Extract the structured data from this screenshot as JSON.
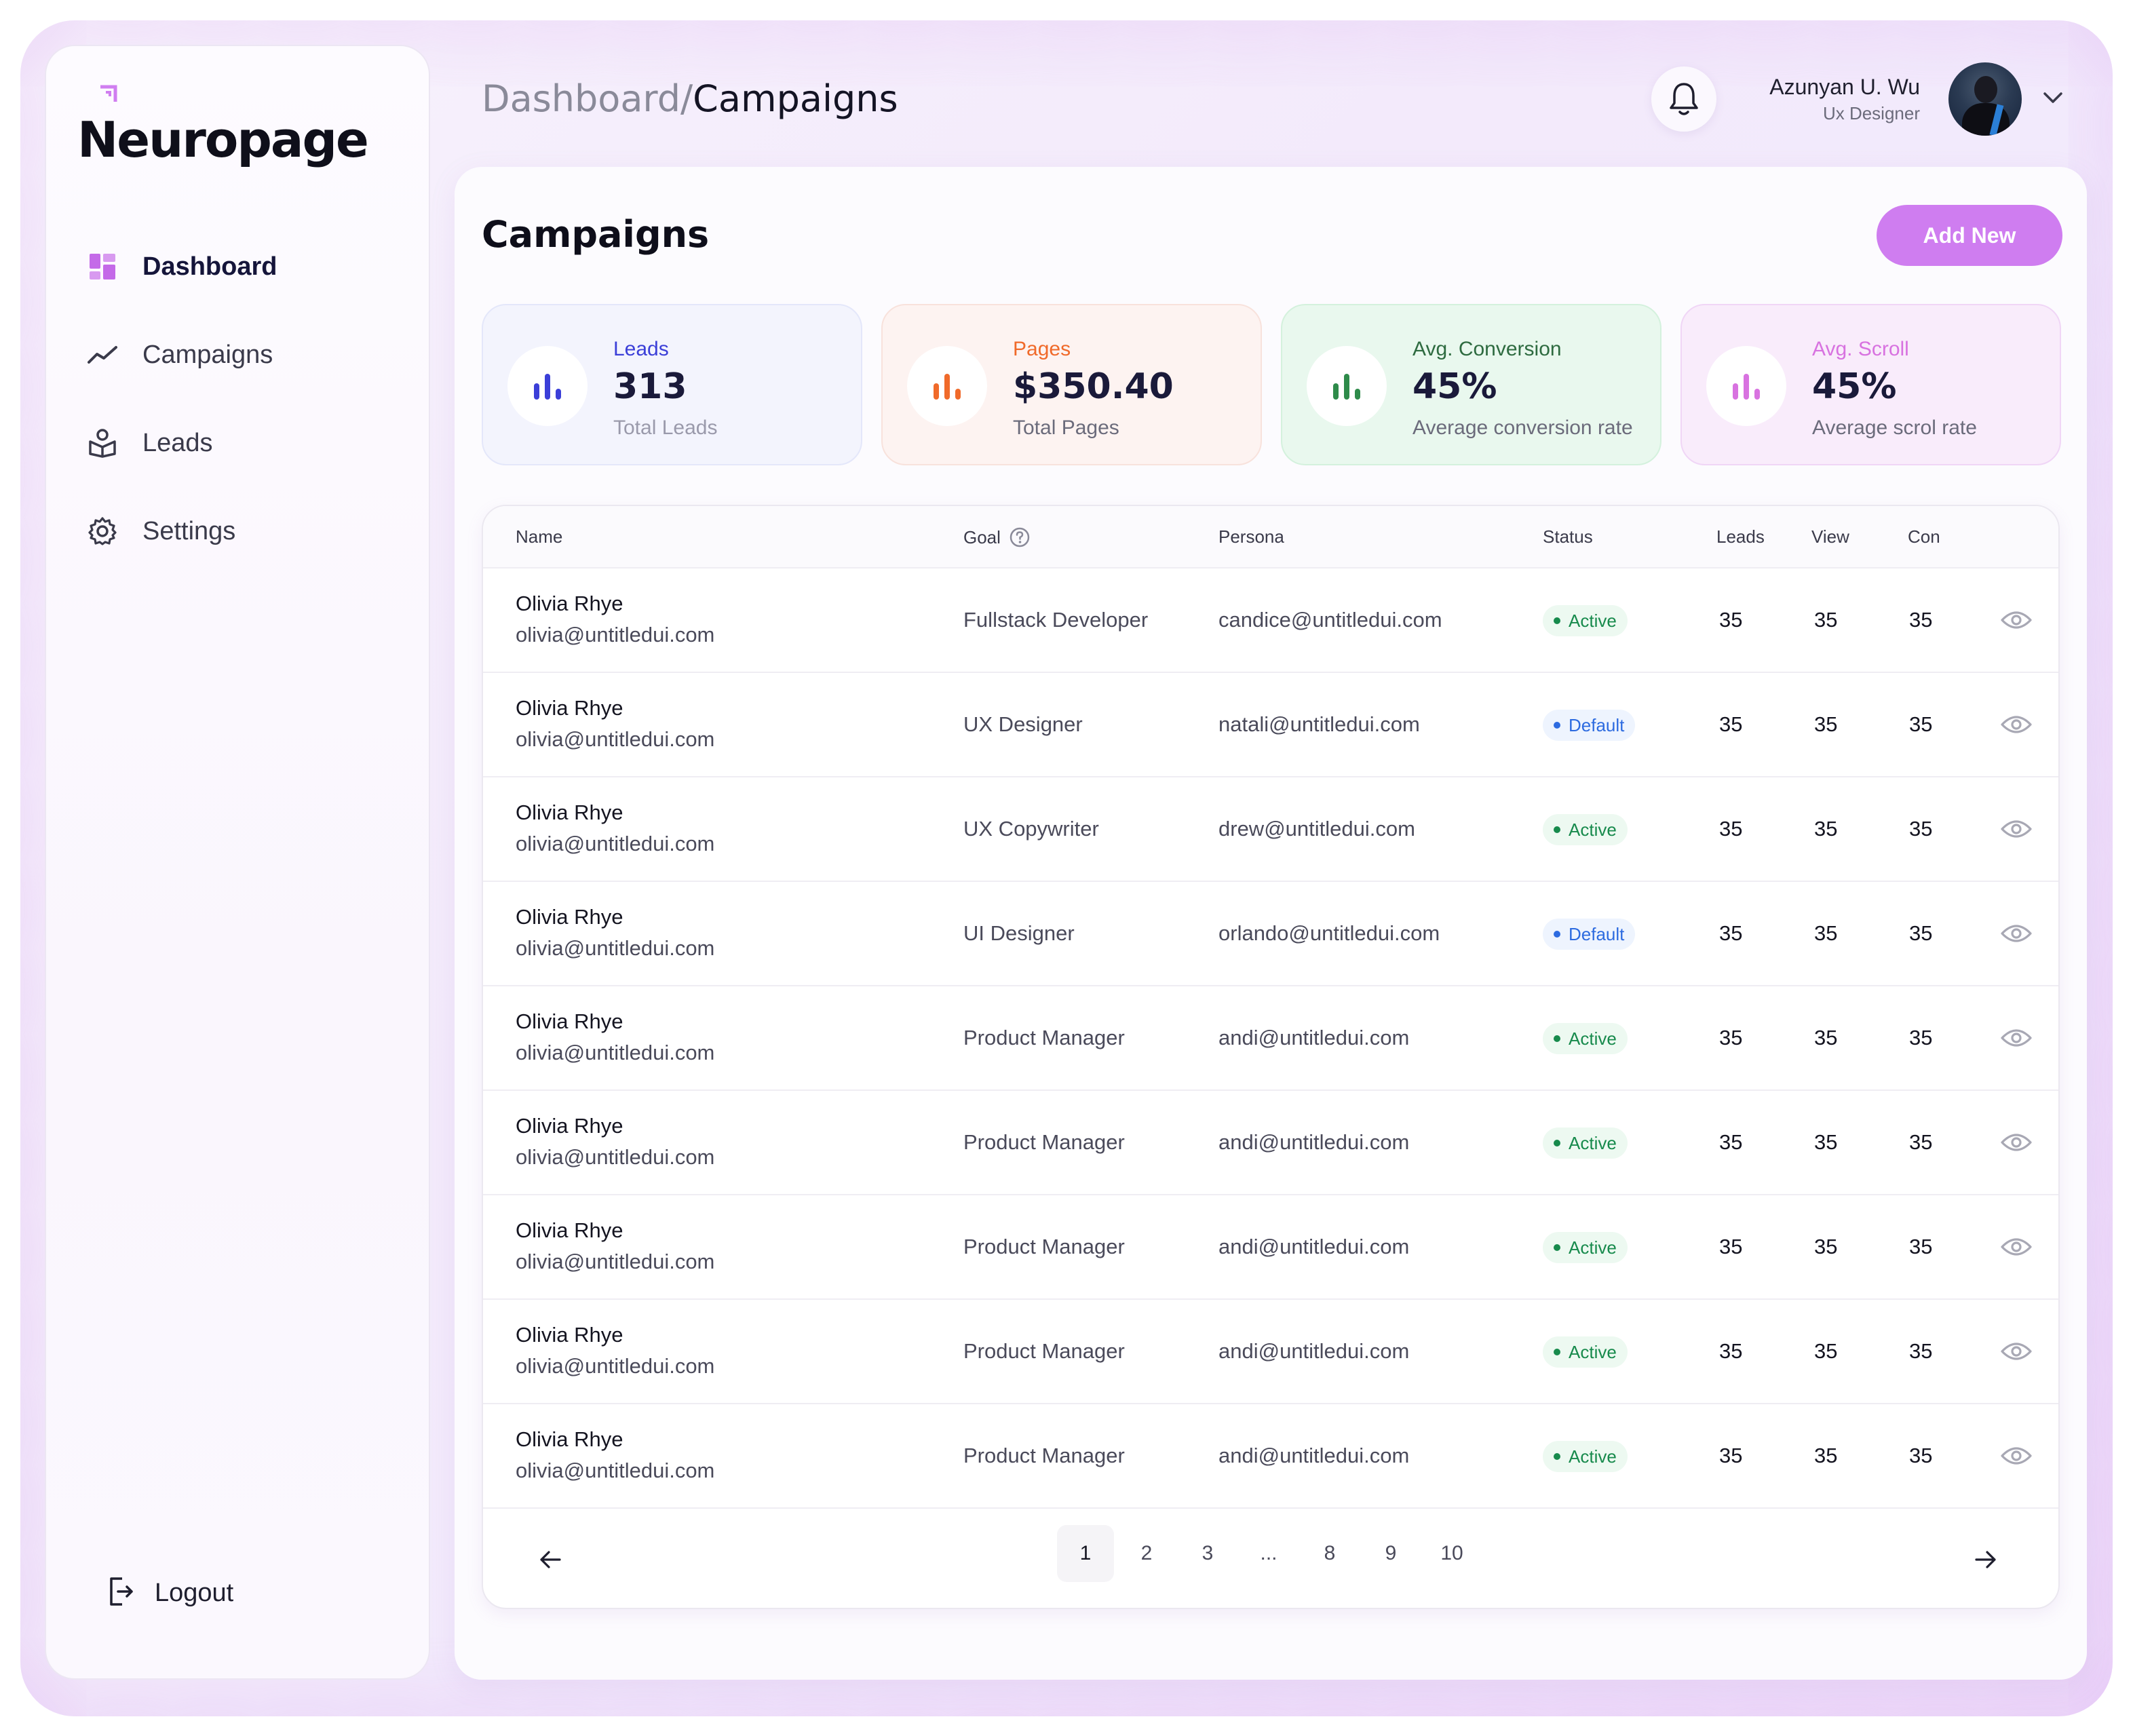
{
  "app": {
    "name": "Neuropage"
  },
  "sidebar": {
    "items": [
      {
        "label": "Dashboard",
        "icon": "dashboard-icon",
        "active": true
      },
      {
        "label": "Campaigns",
        "icon": "trend-line-icon",
        "active": false
      },
      {
        "label": "Leads",
        "icon": "leads-icon",
        "active": false
      },
      {
        "label": "Settings",
        "icon": "gear-icon",
        "active": false
      }
    ],
    "logout_label": "Logout"
  },
  "header": {
    "breadcrumb_root": "Dashboard",
    "breadcrumb_sep": "/",
    "breadcrumb_current": "Campaigns",
    "user": {
      "name": "Azunyan U. Wu",
      "role": "Ux Designer"
    }
  },
  "main": {
    "title": "Campaigns",
    "add_button": "Add New",
    "stats": [
      {
        "label": "Leads",
        "value": "313",
        "sub": "Total Leads",
        "color": "#3b3fd8"
      },
      {
        "label": "Pages",
        "value": "$350.40",
        "sub": "Total Pages",
        "color": "#f06a2a"
      },
      {
        "label": "Avg. Conversion",
        "value": "45%",
        "sub": "Average conversion rate",
        "color": "#2e8b4a"
      },
      {
        "label": "Avg. Scroll",
        "value": "45%",
        "sub": "Average scrol rate",
        "color": "#d872e0"
      }
    ]
  },
  "table": {
    "columns": {
      "name": "Name",
      "goal": "Goal",
      "persona": "Persona",
      "status": "Status",
      "leads": "Leads",
      "view": "View",
      "con": "Con"
    },
    "rows": [
      {
        "name": "Olivia Rhye",
        "email": "olivia@untitledui.com",
        "goal": "Fullstack Developer",
        "persona": "candice@untitledui.com",
        "status": "Active",
        "leads": "35",
        "view": "35",
        "con": "35"
      },
      {
        "name": "Olivia Rhye",
        "email": "olivia@untitledui.com",
        "goal": "UX Designer",
        "persona": "natali@untitledui.com",
        "status": "Default",
        "leads": "35",
        "view": "35",
        "con": "35"
      },
      {
        "name": "Olivia Rhye",
        "email": "olivia@untitledui.com",
        "goal": "UX Copywriter",
        "persona": "drew@untitledui.com",
        "status": "Active",
        "leads": "35",
        "view": "35",
        "con": "35"
      },
      {
        "name": "Olivia Rhye",
        "email": "olivia@untitledui.com",
        "goal": "UI Designer",
        "persona": "orlando@untitledui.com",
        "status": "Default",
        "leads": "35",
        "view": "35",
        "con": "35"
      },
      {
        "name": "Olivia Rhye",
        "email": "olivia@untitledui.com",
        "goal": "Product Manager",
        "persona": "andi@untitledui.com",
        "status": "Active",
        "leads": "35",
        "view": "35",
        "con": "35"
      },
      {
        "name": "Olivia Rhye",
        "email": "olivia@untitledui.com",
        "goal": "Product Manager",
        "persona": "andi@untitledui.com",
        "status": "Active",
        "leads": "35",
        "view": "35",
        "con": "35"
      },
      {
        "name": "Olivia Rhye",
        "email": "olivia@untitledui.com",
        "goal": "Product Manager",
        "persona": "andi@untitledui.com",
        "status": "Active",
        "leads": "35",
        "view": "35",
        "con": "35"
      },
      {
        "name": "Olivia Rhye",
        "email": "olivia@untitledui.com",
        "goal": "Product Manager",
        "persona": "andi@untitledui.com",
        "status": "Active",
        "leads": "35",
        "view": "35",
        "con": "35"
      },
      {
        "name": "Olivia Rhye",
        "email": "olivia@untitledui.com",
        "goal": "Product Manager",
        "persona": "andi@untitledui.com",
        "status": "Active",
        "leads": "35",
        "view": "35",
        "con": "35"
      }
    ]
  },
  "pagination": {
    "pages": [
      "1",
      "2",
      "3",
      "...",
      "8",
      "9",
      "10"
    ],
    "current": "1"
  }
}
